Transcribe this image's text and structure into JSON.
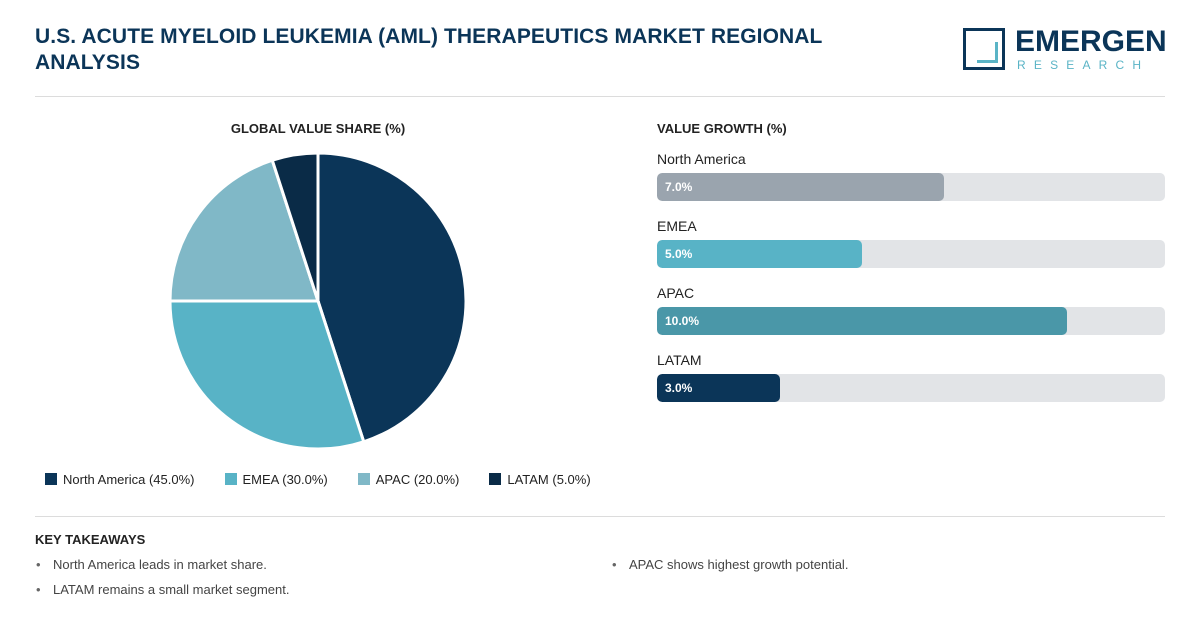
{
  "header": {
    "title": "U.S. ACUTE MYELOID LEUKEMIA (AML) THERAPEUTICS MARKET REGIONAL ANALYSIS",
    "logo_main": "EMERGEN",
    "logo_sub": "RESEARCH"
  },
  "chart_data": [
    {
      "type": "pie",
      "title": "GLOBAL VALUE SHARE (%)",
      "categories": [
        "North America",
        "EMEA",
        "APAC",
        "LATAM"
      ],
      "values": [
        45.0,
        30.0,
        20.0,
        5.0
      ],
      "colors": [
        "#0b3558",
        "#58b3c6",
        "#80b8c7",
        "#0a2b47"
      ],
      "legend": [
        "North America (45.0%)",
        "EMEA (30.0%)",
        "APAC (20.0%)",
        "LATAM (5.0%)"
      ],
      "legend_position": "bottom"
    },
    {
      "type": "bar",
      "orientation": "horizontal",
      "title": "VALUE GROWTH (%)",
      "categories": [
        "North America",
        "EMEA",
        "APAC",
        "LATAM"
      ],
      "values": [
        7.0,
        5.0,
        10.0,
        3.0
      ],
      "value_labels": [
        "7.0%",
        "5.0%",
        "10.0%",
        "3.0%"
      ],
      "colors": [
        "#9aa4ae",
        "#58b3c6",
        "#4a97a8",
        "#0b3558"
      ],
      "xlim": [
        0,
        12.4
      ]
    }
  ],
  "takeaways": {
    "title": "KEY TAKEAWAYS",
    "items": [
      "North America leads in market share.",
      "LATAM remains a small market segment.",
      "APAC shows highest growth potential."
    ]
  }
}
